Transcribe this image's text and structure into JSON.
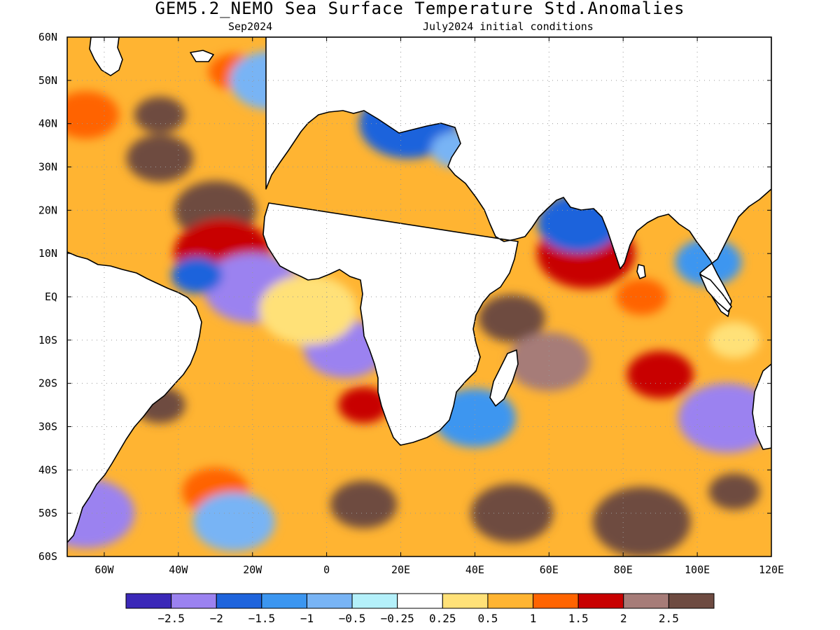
{
  "title": "GEM5.2_NEMO Sea Surface Temperature Std.Anomalies",
  "subtitle_left": "Sep2024",
  "subtitle_right": "July2024 initial conditions",
  "map": {
    "projection": "cylindrical equidistant",
    "lon_range": [
      -70,
      120
    ],
    "lat_range": [
      -60,
      60
    ],
    "grid": "dotted",
    "land_color": "#ffffff",
    "x_ticks": [
      {
        "lon": -60,
        "label": "60W"
      },
      {
        "lon": -40,
        "label": "40W"
      },
      {
        "lon": -20,
        "label": "20W"
      },
      {
        "lon": 0,
        "label": "0"
      },
      {
        "lon": 20,
        "label": "20E"
      },
      {
        "lon": 40,
        "label": "40E"
      },
      {
        "lon": 60,
        "label": "60E"
      },
      {
        "lon": 80,
        "label": "80E"
      },
      {
        "lon": 100,
        "label": "100E"
      },
      {
        "lon": 120,
        "label": "120E"
      }
    ],
    "y_ticks": [
      {
        "lat": 60,
        "label": "60N"
      },
      {
        "lat": 50,
        "label": "50N"
      },
      {
        "lat": 40,
        "label": "40N"
      },
      {
        "lat": 30,
        "label": "30N"
      },
      {
        "lat": 20,
        "label": "20N"
      },
      {
        "lat": 10,
        "label": "10N"
      },
      {
        "lat": 0,
        "label": "EQ"
      },
      {
        "lat": -10,
        "label": "10S"
      },
      {
        "lat": -20,
        "label": "20S"
      },
      {
        "lat": -30,
        "label": "30S"
      },
      {
        "lat": -40,
        "label": "40S"
      },
      {
        "lat": -50,
        "label": "50S"
      },
      {
        "lat": -60,
        "label": "60S"
      }
    ]
  },
  "colorbar": {
    "colors": [
      "#3b28b8",
      "#9b82f0",
      "#1e64dc",
      "#3c96f0",
      "#78b4f5",
      "#b4f0fa",
      "#ffffff",
      "#ffe178",
      "#ffb432",
      "#ff6400",
      "#c80000",
      "#a67c78",
      "#6e4b41"
    ],
    "labels": [
      "-2.5",
      "-2",
      "-1.5",
      "-1",
      "-0.5",
      "-0.25",
      "0.25",
      "0.5",
      "1",
      "1.5",
      "2",
      "2.5"
    ]
  },
  "chart_data": {
    "type": "heatmap",
    "variable": "Sea Surface Temperature Std.Anomalies",
    "xlim": [
      -70,
      120
    ],
    "ylim": [
      -60,
      60
    ],
    "anomaly_features": [
      {
        "lon": -45,
        "lat": 42,
        "value": 2.5
      },
      {
        "lon": -45,
        "lat": 32,
        "value": 2.5
      },
      {
        "lon": -30,
        "lat": 20,
        "value": 2.5
      },
      {
        "lon": -28,
        "lat": 10,
        "value": 1.5
      },
      {
        "lon": -25,
        "lat": 52,
        "value": 1.0
      },
      {
        "lon": -65,
        "lat": 42,
        "value": 1.0
      },
      {
        "lon": -15,
        "lat": 50,
        "value": -1.0
      },
      {
        "lon": -20,
        "lat": 2,
        "value": -2.5
      },
      {
        "lon": -35,
        "lat": 5,
        "value": -2.0
      },
      {
        "lon": 0,
        "lat": -8,
        "value": -1.0
      },
      {
        "lon": 5,
        "lat": -12,
        "value": -2.5
      },
      {
        "lon": -5,
        "lat": -3,
        "value": 0.25
      },
      {
        "lon": -45,
        "lat": -25,
        "value": 2.5
      },
      {
        "lon": -30,
        "lat": -45,
        "value": 1.0
      },
      {
        "lon": -25,
        "lat": -52,
        "value": -1.0
      },
      {
        "lon": -65,
        "lat": -50,
        "value": -2.5
      },
      {
        "lon": 10,
        "lat": -25,
        "value": 1.5
      },
      {
        "lon": 10,
        "lat": -48,
        "value": 2.5
      },
      {
        "lon": 50,
        "lat": -50,
        "value": 2.5
      },
      {
        "lon": 85,
        "lat": -52,
        "value": 2.5
      },
      {
        "lon": 110,
        "lat": -45,
        "value": 2.5
      },
      {
        "lon": 50,
        "lat": -5,
        "value": 2.5
      },
      {
        "lon": 60,
        "lat": -15,
        "value": 2.0
      },
      {
        "lon": 70,
        "lat": 10,
        "value": 1.5
      },
      {
        "lon": 85,
        "lat": 0,
        "value": 1.0
      },
      {
        "lon": 90,
        "lat": -18,
        "value": 1.5
      },
      {
        "lon": 68,
        "lat": 17,
        "value": -2.0
      },
      {
        "lon": 108,
        "lat": -28,
        "value": -2.5
      },
      {
        "lon": 110,
        "lat": -10,
        "value": 0.25
      },
      {
        "lon": 103,
        "lat": 8,
        "value": -1.5
      },
      {
        "lon": 40,
        "lat": -28,
        "value": -1.5
      },
      {
        "lon": 22,
        "lat": 40,
        "value": -2.0
      },
      {
        "lon": 35,
        "lat": 34,
        "value": -1.0
      }
    ]
  }
}
